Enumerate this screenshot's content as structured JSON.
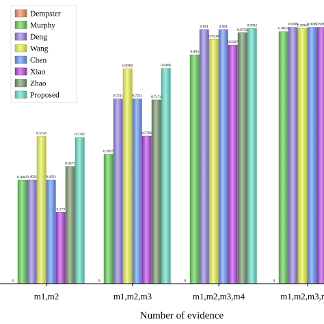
{
  "chart_data": {
    "type": "bar",
    "title": "",
    "xlabel": "Number of evidence",
    "ylabel": "",
    "ylim": [
      0,
      1
    ],
    "legend_position": "top-left",
    "grid": false,
    "categories": [
      "m1,m2",
      "m1,m2,m3",
      "m1,m2,m3,m4",
      "m1,m2,m3,m..."
    ],
    "series": [
      {
        "name": "Dempster",
        "color": "#e8825a",
        "values": [
          0,
          0,
          0,
          0
        ],
        "labels": [
          "0",
          "0",
          "0",
          "0"
        ]
      },
      {
        "name": "Murphy",
        "color": "#5cc84c",
        "values": [
          0.4045,
          0.5055,
          0.893,
          0.9834
        ],
        "labels": [
          "0.4045",
          "0.5055",
          "0.893",
          "0.9834"
        ]
      },
      {
        "name": "Deng",
        "color": "#8c78dc",
        "values": [
          0.4051,
          0.7211,
          0.991,
          0.9999
        ],
        "labels": [
          "0.4051",
          "0.7211",
          "0.991",
          "0.9999"
        ]
      },
      {
        "name": "Wang",
        "color": "#e4ee3c",
        "values": [
          0.5745,
          0.8382,
          0.9538,
          0.9964
        ],
        "labels": [
          "0.5745",
          "0.8382",
          "0.9538",
          "0.9964"
        ]
      },
      {
        "name": "Chen",
        "color": "#5c8cf0",
        "values": [
          0.4051,
          0.7211,
          0.991,
          0.9999
        ],
        "labels": [
          "0.4051",
          "0.7211",
          "0.991",
          "0.9999"
        ]
      },
      {
        "name": "Xiao",
        "color": "#b03cdc",
        "values": [
          0.279,
          0.5761,
          0.9307,
          0.9996
        ],
        "labels": [
          "0.279",
          "0.5761",
          "0.9307",
          "0.9996"
        ]
      },
      {
        "name": "Zhao",
        "color": "#6e8e62",
        "values": [
          0.4571,
          0.7174,
          0.9792,
          0.9999
        ],
        "labels": [
          "0.4571",
          "0.7174",
          "0.9792",
          "0.9999"
        ]
      },
      {
        "name": "Proposed",
        "color": "#58d8c4",
        "values": [
          0.5701,
          0.8406,
          0.9962,
          1.0
        ],
        "labels": [
          "0.5701",
          "0.8406",
          "0.9962",
          "1"
        ]
      }
    ]
  }
}
